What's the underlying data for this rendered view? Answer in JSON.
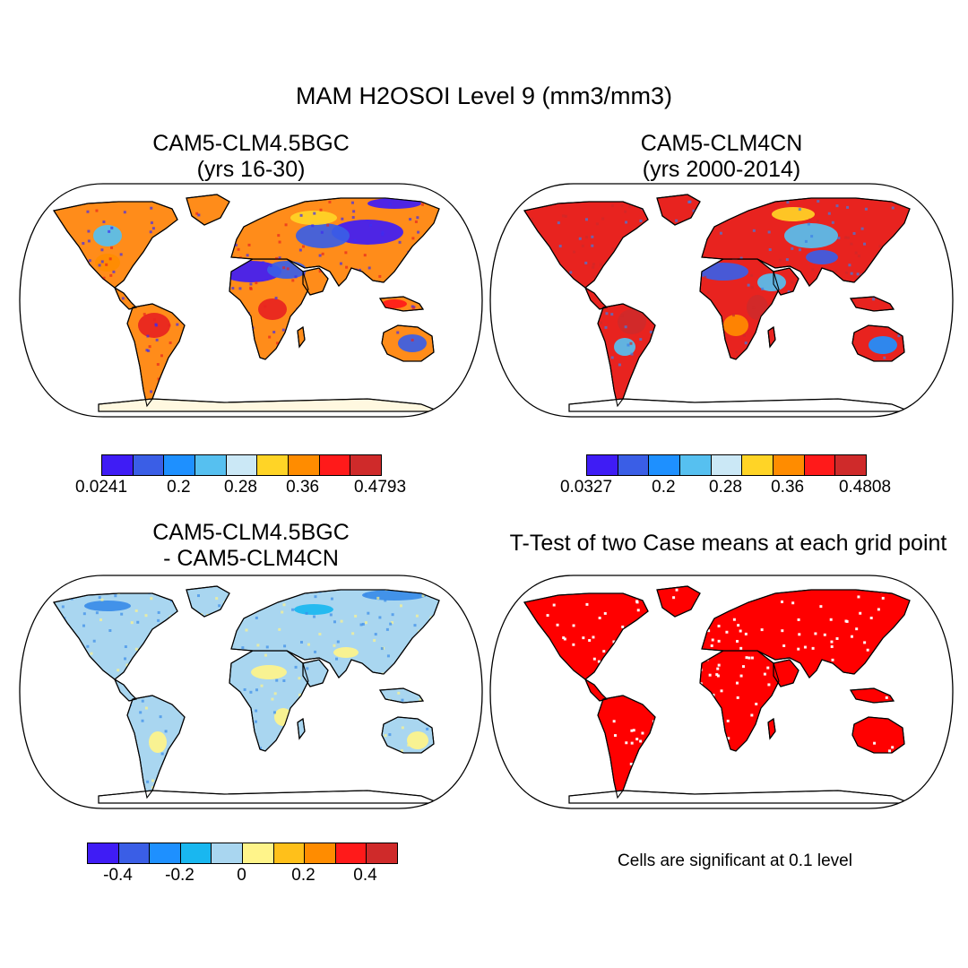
{
  "title": "MAM H2OSOI Level 9 (mm3/mm3)",
  "panels": [
    {
      "id": "p1",
      "title_line1": "CAM5-CLM4.5BGC",
      "title_line2": "(yrs 16-30)",
      "land_color": "#ff8c1a",
      "dry_color": "#3f2cf0",
      "wet_color": "#e8231f"
    },
    {
      "id": "p2",
      "title_line1": "CAM5-CLM4CN",
      "title_line2": "(yrs 2000-2014)",
      "land_color": "#e8231f",
      "dry_color": "#3a7fe8",
      "wet_color": "#cf2a2a"
    },
    {
      "id": "p3",
      "title_line1": "CAM5-CLM4.5BGC",
      "title_line2": "- CAM5-CLM4CN",
      "land_color": "#a9d6f0",
      "dry_color": "#fff48a",
      "wet_color": "#3a8ce8"
    },
    {
      "id": "p4",
      "title_line1": "T-Test of two Case means at each grid point",
      "title_line2": "",
      "land_color": "#ff0000",
      "dry_color": "#ffffff",
      "wet_color": "#ff0000"
    }
  ],
  "colorbars": [
    {
      "id": "cb1",
      "colors": [
        "#3f1cf5",
        "#3a5ee6",
        "#1e90ff",
        "#56c0f0",
        "#cbe8f6",
        "#ffd426",
        "#ff8c00",
        "#ff1a1a",
        "#cf2a2a"
      ],
      "ticks": [
        "0.0241",
        "0.2",
        "0.28",
        "0.36",
        "0.4793"
      ],
      "tick_positions": [
        0,
        2.5,
        4.5,
        6.5,
        9
      ]
    },
    {
      "id": "cb2",
      "colors": [
        "#3f1cf5",
        "#3a5ee6",
        "#1e90ff",
        "#56c0f0",
        "#cbe8f6",
        "#ffd426",
        "#ff8c00",
        "#ff1a1a",
        "#cf2a2a"
      ],
      "ticks": [
        "0.0327",
        "0.2",
        "0.28",
        "0.36",
        "0.4808"
      ],
      "tick_positions": [
        0,
        2.5,
        4.5,
        6.5,
        9
      ]
    },
    {
      "id": "cb3",
      "colors": [
        "#3f1cf5",
        "#3a5ee6",
        "#1e90ff",
        "#19b7f0",
        "#a9d6f0",
        "#fff48a",
        "#ffc01a",
        "#ff8c00",
        "#ff1a1a",
        "#cf2a2a"
      ],
      "ticks": [
        "-0.4",
        "-0.2",
        "0",
        "0.2",
        "0.4"
      ],
      "tick_positions": [
        1,
        3,
        5,
        7,
        9
      ]
    }
  ],
  "note": "Cells are significant at 0.1 level"
}
